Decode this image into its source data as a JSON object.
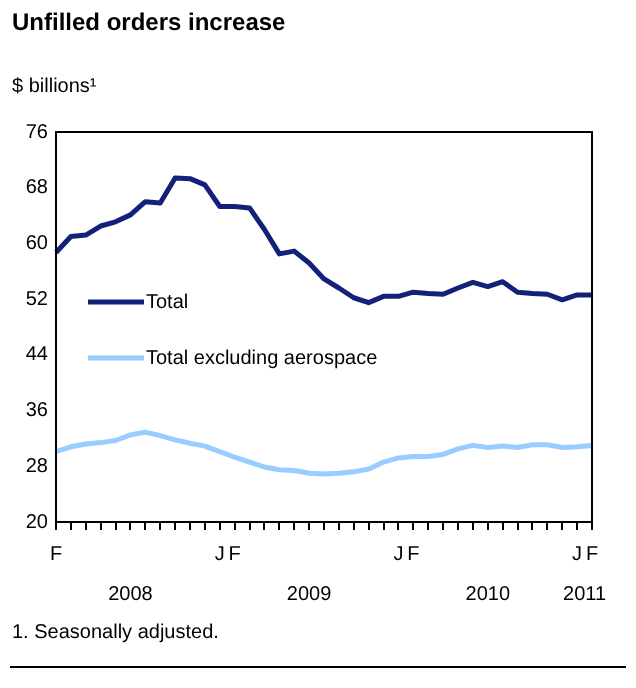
{
  "chart_data": {
    "type": "line",
    "title": "Unfilled orders increase",
    "ylabel": "$ billions¹",
    "categories": [
      "F",
      null,
      null,
      null,
      null,
      null,
      null,
      null,
      null,
      null,
      null,
      "J",
      "F",
      null,
      null,
      null,
      null,
      null,
      null,
      null,
      null,
      null,
      null,
      "J",
      "F",
      null,
      null,
      null,
      null,
      null,
      null,
      null,
      null,
      null,
      null,
      "J",
      "F"
    ],
    "series": [
      {
        "name": "Total",
        "color": "#14217a",
        "values": [
          58.7,
          61.0,
          61.2,
          62.5,
          63.1,
          64.1,
          66.0,
          65.8,
          69.4,
          69.3,
          68.4,
          65.3,
          65.3,
          65.1,
          62.0,
          58.5,
          58.9,
          57.2,
          54.9,
          53.6,
          52.2,
          51.5,
          52.4,
          52.4,
          53.0,
          52.8,
          52.7,
          53.6,
          54.4,
          53.8,
          54.5,
          53.0,
          52.8,
          52.7,
          51.9,
          52.6,
          52.6
        ]
      },
      {
        "name": "Total excluding aerospace",
        "color": "#99ccff",
        "values": [
          30.1,
          30.8,
          31.2,
          31.4,
          31.7,
          32.5,
          32.9,
          32.4,
          31.8,
          31.3,
          30.9,
          30.1,
          29.3,
          28.6,
          27.9,
          27.5,
          27.4,
          27.0,
          26.9,
          27.0,
          27.2,
          27.6,
          28.6,
          29.2,
          29.4,
          29.4,
          29.7,
          30.5,
          31.0,
          30.7,
          30.9,
          30.7,
          31.1,
          31.1,
          30.7,
          30.8,
          31.0
        ]
      }
    ],
    "ylim": [
      20,
      76
    ],
    "yticks": [
      20,
      28,
      36,
      44,
      52,
      60,
      68,
      76
    ],
    "grid": false,
    "legend": "left",
    "marker": "none",
    "line_style": "solid",
    "annotations": [
      "2008",
      "2009",
      "2010",
      "2011",
      "1. Seasonally adjusted."
    ]
  }
}
